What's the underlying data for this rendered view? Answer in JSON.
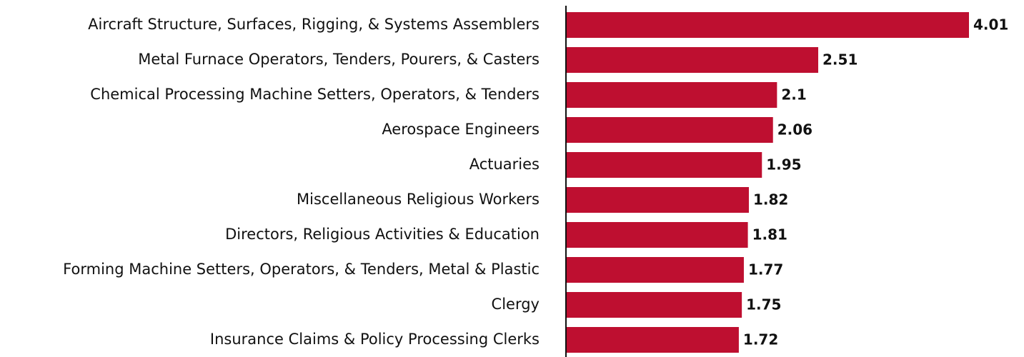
{
  "chart_data": {
    "type": "bar",
    "orientation": "horizontal",
    "categories": [
      "Aircraft Structure, Surfaces, Rigging, & Systems Assemblers",
      "Metal Furnace Operators, Tenders, Pourers, & Casters",
      "Chemical Processing Machine Setters, Operators, & Tenders",
      "Aerospace Engineers",
      "Actuaries",
      "Miscellaneous Religious Workers",
      "Directors, Religious Activities & Education",
      "Forming Machine Setters, Operators, & Tenders, Metal & Plastic",
      "Clergy",
      "Insurance Claims & Policy Processing Clerks"
    ],
    "values": [
      4.01,
      2.51,
      2.1,
      2.06,
      1.95,
      1.82,
      1.81,
      1.77,
      1.75,
      1.72
    ],
    "color": "#be0f30"
  }
}
